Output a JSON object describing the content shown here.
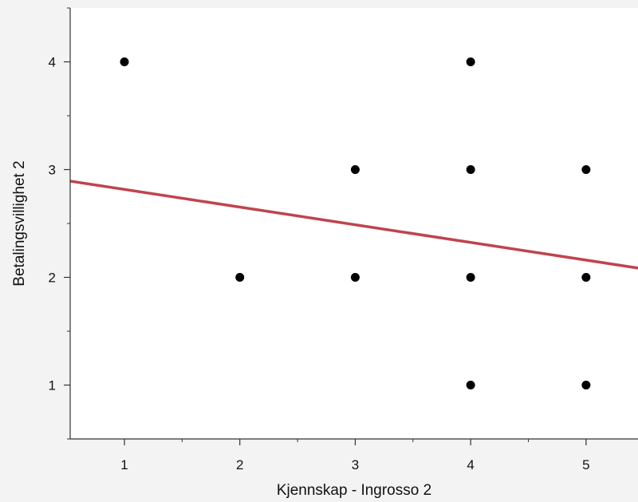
{
  "chart_data": {
    "type": "scatter",
    "xlabel": "Kjennskap - Ingrosso 2",
    "ylabel": "Betalingsvillighet 2",
    "xlim": [
      0.53,
      5.45
    ],
    "ylim": [
      0.5,
      4.5
    ],
    "x_ticks": [
      1,
      2,
      3,
      4,
      5
    ],
    "y_ticks": [
      1,
      2,
      3,
      4
    ],
    "x_tick_labels": [
      "1",
      "2",
      "3",
      "4",
      "5"
    ],
    "y_tick_labels": [
      "1",
      "2",
      "3",
      "4"
    ],
    "grid": false,
    "points": [
      {
        "x": 1,
        "y": 4
      },
      {
        "x": 4,
        "y": 4
      },
      {
        "x": 3,
        "y": 3
      },
      {
        "x": 4,
        "y": 3
      },
      {
        "x": 5,
        "y": 3
      },
      {
        "x": 2,
        "y": 2
      },
      {
        "x": 3,
        "y": 2
      },
      {
        "x": 4,
        "y": 2
      },
      {
        "x": 5,
        "y": 2
      },
      {
        "x": 4,
        "y": 1
      },
      {
        "x": 5,
        "y": 1
      }
    ],
    "fit_line": {
      "intercept": 2.98,
      "slope": -0.164
    },
    "colors": {
      "points": "#000000",
      "fit_line": "#c0434f",
      "plot_bg": "#ffffff",
      "page_bg": "#f3f3f3"
    }
  }
}
